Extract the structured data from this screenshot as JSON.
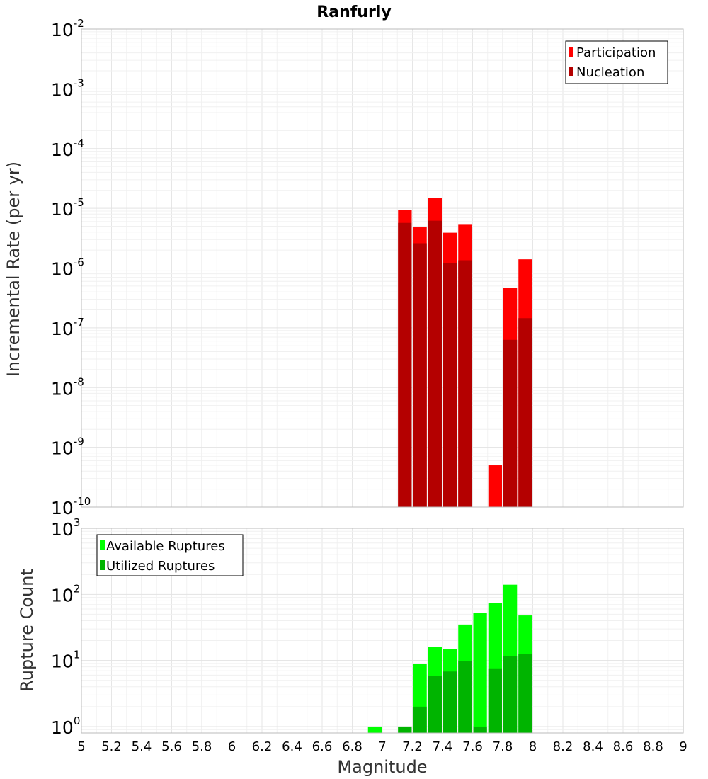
{
  "chart_data": [
    {
      "type": "bar",
      "title": "Ranfurly",
      "ylabel": "Incremental Rate (per yr)",
      "xlabel": "Magnitude",
      "yscale": "log",
      "ylim": [
        1e-10,
        0.01
      ],
      "xlim": [
        5,
        9
      ],
      "y_tick_exponents": [
        "-2",
        "-3",
        "-4",
        "-5",
        "-6",
        "-7",
        "-8",
        "-9",
        "-10"
      ],
      "y_tick_base": "10",
      "legend_position": "top-right",
      "series": [
        {
          "name": "Participation",
          "color": "#ff0000",
          "points": [
            {
              "x": 7.15,
              "y": 9.5e-06
            },
            {
              "x": 7.25,
              "y": 4.8e-06
            },
            {
              "x": 7.35,
              "y": 1.5e-05
            },
            {
              "x": 7.45,
              "y": 3.9e-06
            },
            {
              "x": 7.55,
              "y": 5.3e-06
            },
            {
              "x": 7.75,
              "y": 5e-10
            },
            {
              "x": 7.85,
              "y": 4.6e-07
            },
            {
              "x": 7.95,
              "y": 1.4e-06
            }
          ]
        },
        {
          "name": "Nucleation",
          "color": "#b40000",
          "points": [
            {
              "x": 7.15,
              "y": 5.7e-06
            },
            {
              "x": 7.25,
              "y": 2.6e-06
            },
            {
              "x": 7.35,
              "y": 6.2e-06
            },
            {
              "x": 7.45,
              "y": 1.2e-06
            },
            {
              "x": 7.55,
              "y": 1.35e-06
            },
            {
              "x": 7.85,
              "y": 6.3e-08
            },
            {
              "x": 7.95,
              "y": 1.45e-07
            }
          ]
        }
      ]
    },
    {
      "type": "bar",
      "ylabel": "Rupture Count",
      "xlabel": "Magnitude",
      "yscale": "log",
      "ylim": [
        0.8,
        1000
      ],
      "xlim": [
        5,
        9
      ],
      "y_tick_exponents": [
        "3",
        "2",
        "1",
        "0"
      ],
      "y_tick_base": "10",
      "x_ticks": [
        "5",
        "5.2",
        "5.4",
        "5.6",
        "5.8",
        "6",
        "6.2",
        "6.4",
        "6.6",
        "6.8",
        "7",
        "7.2",
        "7.4",
        "7.6",
        "7.8",
        "8",
        "8.2",
        "8.4",
        "8.6",
        "8.8",
        "9"
      ],
      "legend_position": "top-left",
      "series": [
        {
          "name": "Available Ruptures",
          "color": "#00ff00",
          "points": [
            {
              "x": 6.95,
              "y": 1
            },
            {
              "x": 7.15,
              "y": 1
            },
            {
              "x": 7.25,
              "y": 8.8
            },
            {
              "x": 7.35,
              "y": 16
            },
            {
              "x": 7.45,
              "y": 15
            },
            {
              "x": 7.55,
              "y": 35
            },
            {
              "x": 7.65,
              "y": 53
            },
            {
              "x": 7.75,
              "y": 74
            },
            {
              "x": 7.85,
              "y": 140
            },
            {
              "x": 7.95,
              "y": 48
            }
          ]
        },
        {
          "name": "Utilized Ruptures",
          "color": "#00b400",
          "points": [
            {
              "x": 7.15,
              "y": 1
            },
            {
              "x": 7.25,
              "y": 2
            },
            {
              "x": 7.35,
              "y": 5.8
            },
            {
              "x": 7.45,
              "y": 6.8
            },
            {
              "x": 7.55,
              "y": 9.8
            },
            {
              "x": 7.65,
              "y": 1
            },
            {
              "x": 7.75,
              "y": 7.6
            },
            {
              "x": 7.85,
              "y": 11.5
            },
            {
              "x": 7.95,
              "y": 12.5
            }
          ]
        }
      ]
    }
  ]
}
